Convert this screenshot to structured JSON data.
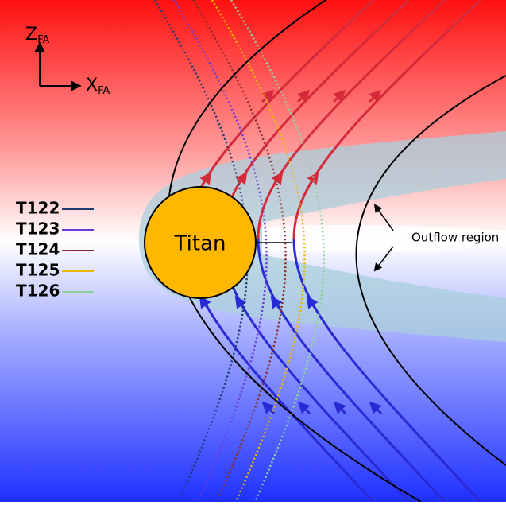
{
  "axes": {
    "z": {
      "main": "Z",
      "sub": "FA"
    },
    "x": {
      "main": "X",
      "sub": "FA"
    }
  },
  "legend": [
    {
      "label": "T122",
      "color": "#1f3b73"
    },
    {
      "label": "T123",
      "color": "#6a3bd6"
    },
    {
      "label": "T124",
      "color": "#8b2a2a"
    },
    {
      "label": "T125",
      "color": "#e6b800"
    },
    {
      "label": "T126",
      "color": "#8fd19e"
    }
  ],
  "body": {
    "label": "Titan"
  },
  "annotation": "Outflow region"
}
